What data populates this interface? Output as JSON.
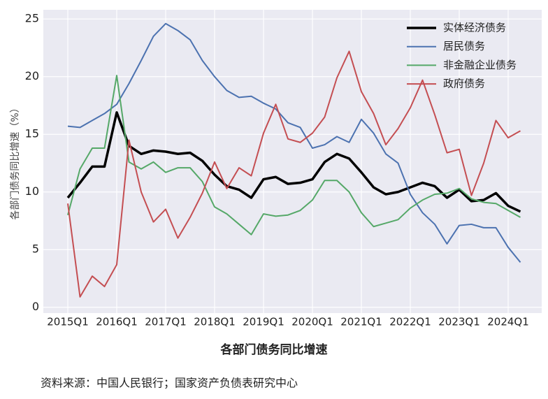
{
  "chart_data": {
    "type": "line",
    "title": "各部门债务同比增速",
    "source": "资料来源：中国人民银行；国家资产负债表研究中心",
    "ylabel": "各部门债务同比增速（%）",
    "categories": [
      "2015Q1",
      null,
      null,
      null,
      "2016Q1",
      null,
      null,
      null,
      "2017Q1",
      null,
      null,
      null,
      "2018Q1",
      null,
      null,
      null,
      "2019Q1",
      null,
      null,
      null,
      "2020Q1",
      null,
      null,
      null,
      "2021Q1",
      null,
      null,
      null,
      "2022Q1",
      null,
      null,
      null,
      "2023Q1",
      null,
      null,
      null,
      "2024Q1",
      null
    ],
    "series": [
      {
        "name": "实体经济债务",
        "color": "#000000",
        "values": [
          9.5,
          10.8,
          12.2,
          12.2,
          16.9,
          14.0,
          13.3,
          13.6,
          13.5,
          13.3,
          13.4,
          12.7,
          11.5,
          10.5,
          10.2,
          9.5,
          11.1,
          11.3,
          10.7,
          10.8,
          11.1,
          12.6,
          13.3,
          12.9,
          11.7,
          10.4,
          9.8,
          10.0,
          10.4,
          10.8,
          10.5,
          9.5,
          10.2,
          9.2,
          9.3,
          9.9,
          8.8,
          8.3
        ]
      },
      {
        "name": "居民债务",
        "color": "#4c72b0",
        "values": [
          15.7,
          15.6,
          16.2,
          16.8,
          17.6,
          19.4,
          21.4,
          23.5,
          24.6,
          24.0,
          23.2,
          21.4,
          20.0,
          18.8,
          18.2,
          18.3,
          17.7,
          17.2,
          16.0,
          15.6,
          13.8,
          14.1,
          14.8,
          14.3,
          16.3,
          15.1,
          13.3,
          12.5,
          9.8,
          8.2,
          7.2,
          5.5,
          7.1,
          7.2,
          6.9,
          6.9,
          5.2,
          3.9
        ]
      },
      {
        "name": "非金融企业债务",
        "color": "#55a868",
        "values": [
          8.0,
          12.0,
          13.8,
          13.8,
          20.1,
          12.6,
          12.0,
          12.6,
          11.7,
          12.1,
          12.1,
          10.9,
          8.7,
          8.1,
          7.2,
          6.3,
          8.1,
          7.9,
          8.0,
          8.4,
          9.3,
          11.0,
          11.0,
          10.0,
          8.2,
          7.0,
          7.3,
          7.6,
          8.6,
          9.3,
          9.8,
          9.9,
          10.3,
          9.4,
          9.1,
          9.0,
          8.4,
          7.8
        ]
      },
      {
        "name": "政府债务",
        "color": "#c44e52",
        "values": [
          9.0,
          0.9,
          2.7,
          1.8,
          3.7,
          14.5,
          10.0,
          7.4,
          8.5,
          6.0,
          7.8,
          9.9,
          12.6,
          10.3,
          12.1,
          11.4,
          15.1,
          17.6,
          14.6,
          14.3,
          15.1,
          16.5,
          19.9,
          22.2,
          18.7,
          16.8,
          14.1,
          15.5,
          17.3,
          19.7,
          16.7,
          13.4,
          13.7,
          9.7,
          12.5,
          16.2,
          14.7,
          15.3
        ]
      }
    ],
    "ylim": [
      -0.5,
      25.8
    ],
    "yticks": [
      0,
      5,
      10,
      15,
      20,
      25
    ],
    "grid": true,
    "legend": "upper right"
  }
}
